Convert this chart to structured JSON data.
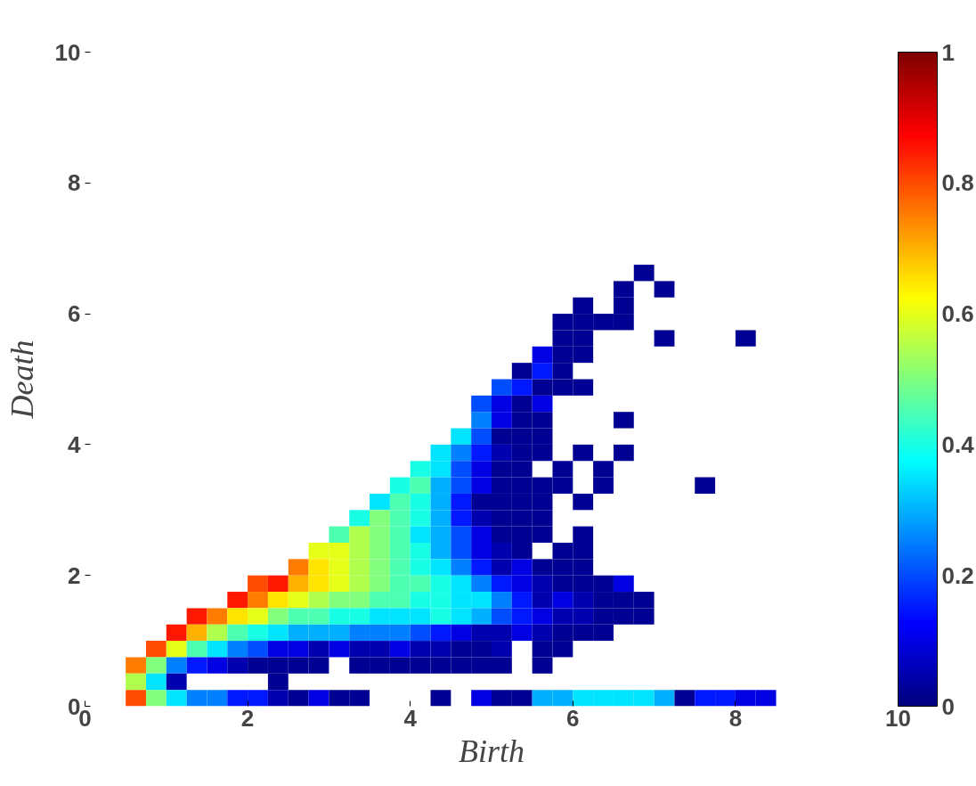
{
  "chart_data": {
    "type": "heatmap",
    "xlabel": "Birth",
    "ylabel": "Death",
    "x": [
      0.625,
      0.875,
      1.125,
      1.375,
      1.625,
      1.875,
      2.125,
      2.375,
      2.625,
      2.875,
      3.125,
      3.375,
      3.625,
      3.875,
      4.125,
      4.375,
      4.625,
      4.875,
      5.125,
      5.375,
      5.625,
      5.875,
      6.125,
      6.375,
      6.625,
      6.875,
      7.125,
      7.375,
      7.625,
      7.875,
      8.125,
      8.375
    ],
    "y": [
      6.625,
      6.375,
      6.125,
      5.875,
      5.625,
      5.375,
      5.125,
      4.875,
      4.625,
      4.375,
      4.125,
      3.875,
      3.625,
      3.375,
      3.125,
      2.875,
      2.625,
      2.375,
      2.125,
      1.875,
      1.625,
      1.375,
      1.125,
      0.875,
      0.625,
      0.375,
      0.125
    ],
    "xlim": [
      0,
      10
    ],
    "ylim": [
      0,
      10
    ],
    "xticks": [
      0,
      2,
      4,
      6,
      8,
      10
    ],
    "yticks": [
      0,
      2,
      4,
      6,
      8,
      10
    ],
    "clim": [
      0,
      1
    ],
    "cticks": [
      0,
      0.2,
      0.4,
      0.6,
      0.8,
      1
    ],
    "cells": [
      [
        null,
        null,
        null,
        null,
        null,
        null,
        null,
        null,
        null,
        null,
        null,
        null,
        null,
        null,
        null,
        null,
        null,
        null,
        null,
        null,
        null,
        null,
        null,
        null,
        null,
        0.02,
        null,
        null,
        null,
        null,
        null,
        null
      ],
      [
        null,
        null,
        null,
        null,
        null,
        null,
        null,
        null,
        null,
        null,
        null,
        null,
        null,
        null,
        null,
        null,
        null,
        null,
        null,
        null,
        null,
        null,
        null,
        null,
        0.02,
        null,
        0.02,
        null,
        null,
        null,
        null,
        null
      ],
      [
        null,
        null,
        null,
        null,
        null,
        null,
        null,
        null,
        null,
        null,
        null,
        null,
        null,
        null,
        null,
        null,
        null,
        null,
        null,
        null,
        null,
        null,
        0.02,
        null,
        0.02,
        null,
        null,
        null,
        null,
        null,
        null,
        null
      ],
      [
        null,
        null,
        null,
        null,
        null,
        null,
        null,
        null,
        null,
        null,
        null,
        null,
        null,
        null,
        null,
        null,
        null,
        null,
        null,
        null,
        null,
        0.02,
        0.02,
        0.02,
        0.02,
        null,
        null,
        null,
        null,
        null,
        null,
        null
      ],
      [
        null,
        null,
        null,
        null,
        null,
        null,
        null,
        null,
        null,
        null,
        null,
        null,
        null,
        null,
        null,
        null,
        null,
        null,
        null,
        null,
        null,
        0.02,
        0.02,
        null,
        null,
        null,
        0.02,
        null,
        null,
        null,
        0.02,
        null
      ],
      [
        null,
        null,
        null,
        null,
        null,
        null,
        null,
        null,
        null,
        null,
        null,
        null,
        null,
        null,
        null,
        null,
        null,
        null,
        null,
        null,
        0.1,
        0.02,
        0.02,
        null,
        null,
        null,
        null,
        null,
        null,
        null,
        null,
        null
      ],
      [
        null,
        null,
        null,
        null,
        null,
        null,
        null,
        null,
        null,
        null,
        null,
        null,
        null,
        null,
        null,
        null,
        null,
        null,
        null,
        0.02,
        0.15,
        0.02,
        null,
        null,
        null,
        null,
        null,
        null,
        null,
        null,
        null,
        null
      ],
      [
        null,
        null,
        null,
        null,
        null,
        null,
        null,
        null,
        null,
        null,
        null,
        null,
        null,
        null,
        null,
        null,
        null,
        null,
        0.2,
        0.15,
        0.02,
        0.02,
        0.02,
        null,
        null,
        null,
        null,
        null,
        null,
        null,
        null,
        null
      ],
      [
        null,
        null,
        null,
        null,
        null,
        null,
        null,
        null,
        null,
        null,
        null,
        null,
        null,
        null,
        null,
        null,
        null,
        0.2,
        0.1,
        0.02,
        0.1,
        null,
        null,
        null,
        null,
        null,
        null,
        null,
        null,
        null,
        null,
        null
      ],
      [
        null,
        null,
        null,
        null,
        null,
        null,
        null,
        null,
        null,
        null,
        null,
        null,
        null,
        null,
        null,
        null,
        null,
        0.25,
        0.1,
        0.02,
        0.02,
        null,
        null,
        null,
        0.02,
        null,
        null,
        null,
        null,
        null,
        null,
        null
      ],
      [
        null,
        null,
        null,
        null,
        null,
        null,
        null,
        null,
        null,
        null,
        null,
        null,
        null,
        null,
        null,
        null,
        0.35,
        0.2,
        0.02,
        0.02,
        0.02,
        null,
        null,
        null,
        null,
        null,
        null,
        null,
        null,
        null,
        null,
        null
      ],
      [
        null,
        null,
        null,
        null,
        null,
        null,
        null,
        null,
        null,
        null,
        null,
        null,
        null,
        null,
        null,
        0.35,
        0.25,
        0.15,
        0.05,
        0.02,
        0.02,
        null,
        0.02,
        null,
        0.02,
        null,
        null,
        null,
        null,
        null,
        null,
        null
      ],
      [
        null,
        null,
        null,
        null,
        null,
        null,
        null,
        null,
        null,
        null,
        null,
        null,
        null,
        null,
        0.4,
        0.35,
        0.2,
        0.1,
        0.02,
        0.02,
        null,
        0.02,
        null,
        0.02,
        null,
        null,
        null,
        null,
        null,
        null,
        null,
        null
      ],
      [
        null,
        null,
        null,
        null,
        null,
        null,
        null,
        null,
        null,
        null,
        null,
        null,
        null,
        0.4,
        0.45,
        0.3,
        0.2,
        0.1,
        0.02,
        0.02,
        0.02,
        0.02,
        null,
        0.02,
        null,
        null,
        null,
        null,
        0.02,
        null,
        null,
        null
      ],
      [
        null,
        null,
        null,
        null,
        null,
        null,
        null,
        null,
        null,
        null,
        null,
        null,
        0.35,
        0.45,
        0.4,
        0.3,
        0.15,
        0.02,
        0.02,
        0.02,
        0.02,
        null,
        0.02,
        null,
        null,
        null,
        null,
        null,
        null,
        null,
        null,
        null
      ],
      [
        null,
        null,
        null,
        null,
        null,
        null,
        null,
        null,
        null,
        null,
        null,
        0.4,
        0.5,
        0.45,
        0.4,
        0.3,
        0.15,
        0.05,
        0.02,
        0.02,
        0.02,
        null,
        null,
        null,
        null,
        null,
        null,
        null,
        null,
        null,
        null,
        null
      ],
      [
        null,
        null,
        null,
        null,
        null,
        null,
        null,
        null,
        null,
        null,
        0.45,
        0.55,
        0.5,
        0.45,
        0.35,
        0.3,
        0.2,
        0.1,
        0.02,
        0.02,
        0.02,
        null,
        0.02,
        null,
        null,
        null,
        null,
        null,
        null,
        null,
        null,
        null
      ],
      [
        null,
        null,
        null,
        null,
        null,
        null,
        null,
        null,
        null,
        0.6,
        0.6,
        0.55,
        0.5,
        0.45,
        0.4,
        0.3,
        0.2,
        0.1,
        0.05,
        0.02,
        null,
        0.02,
        0.02,
        null,
        null,
        null,
        null,
        null,
        null,
        null,
        null,
        null
      ],
      [
        null,
        null,
        null,
        null,
        null,
        null,
        null,
        null,
        0.75,
        0.65,
        0.6,
        0.55,
        0.5,
        0.45,
        0.4,
        0.35,
        0.25,
        0.15,
        0.05,
        0.1,
        0.02,
        0.02,
        0.02,
        null,
        null,
        null,
        null,
        null,
        null,
        null,
        null,
        null
      ],
      [
        null,
        null,
        null,
        null,
        null,
        null,
        0.8,
        0.85,
        0.7,
        0.65,
        0.6,
        0.55,
        0.5,
        0.45,
        0.45,
        0.4,
        0.35,
        0.25,
        0.15,
        0.1,
        0.05,
        0.02,
        0.02,
        0.02,
        0.1,
        null,
        null,
        null,
        null,
        null,
        null,
        null
      ],
      [
        null,
        null,
        null,
        null,
        null,
        0.85,
        0.75,
        0.65,
        0.6,
        0.55,
        0.5,
        0.5,
        0.45,
        0.45,
        0.4,
        0.4,
        0.35,
        0.35,
        0.25,
        0.15,
        0.05,
        0.1,
        0.05,
        0.02,
        0.02,
        0.02,
        null,
        null,
        null,
        null,
        null,
        null
      ],
      [
        null,
        null,
        null,
        0.85,
        0.75,
        0.65,
        0.6,
        0.5,
        0.45,
        0.45,
        0.4,
        0.4,
        0.35,
        0.35,
        0.35,
        0.4,
        0.35,
        0.3,
        0.2,
        0.15,
        0.1,
        0.05,
        0.05,
        0.02,
        0.02,
        0.02,
        null,
        null,
        null,
        null,
        null,
        null
      ],
      [
        null,
        null,
        0.85,
        0.7,
        0.55,
        0.45,
        0.4,
        0.35,
        0.3,
        0.3,
        0.3,
        0.25,
        0.25,
        0.25,
        0.2,
        0.15,
        0.1,
        0.05,
        0.05,
        0.1,
        0.05,
        0.02,
        0.02,
        0.02,
        null,
        null,
        null,
        null,
        null,
        null,
        null,
        null
      ],
      [
        null,
        0.8,
        0.6,
        0.45,
        0.35,
        0.25,
        0.2,
        0.1,
        0.1,
        0.05,
        0.1,
        0.05,
        0.05,
        0.1,
        0.05,
        0.05,
        0.02,
        0.02,
        0.05,
        null,
        0.02,
        0.02,
        null,
        null,
        null,
        null,
        null,
        null,
        null,
        null,
        null,
        null
      ],
      [
        0.75,
        0.5,
        0.25,
        0.15,
        0.1,
        0.05,
        0.02,
        0.02,
        0.02,
        0.02,
        null,
        0.02,
        0.02,
        0.02,
        0.02,
        0.02,
        0.02,
        0.02,
        0.02,
        null,
        0.02,
        null,
        null,
        null,
        null,
        null,
        null,
        null,
        null,
        null,
        null,
        null
      ],
      [
        0.55,
        0.35,
        0.05,
        null,
        null,
        null,
        null,
        0.02,
        null,
        null,
        null,
        null,
        null,
        null,
        null,
        null,
        null,
        null,
        null,
        null,
        null,
        null,
        null,
        null,
        null,
        null,
        null,
        null,
        null,
        null,
        null,
        null
      ],
      [
        0.8,
        0.5,
        0.35,
        0.25,
        0.25,
        0.15,
        0.15,
        0.05,
        0.02,
        0.1,
        0.02,
        0.02,
        null,
        null,
        null,
        0.02,
        null,
        0.1,
        0.02,
        0.02,
        0.3,
        0.3,
        0.35,
        0.35,
        0.35,
        0.35,
        0.3,
        0.02,
        0.15,
        0.15,
        0.1,
        0.1
      ]
    ]
  }
}
